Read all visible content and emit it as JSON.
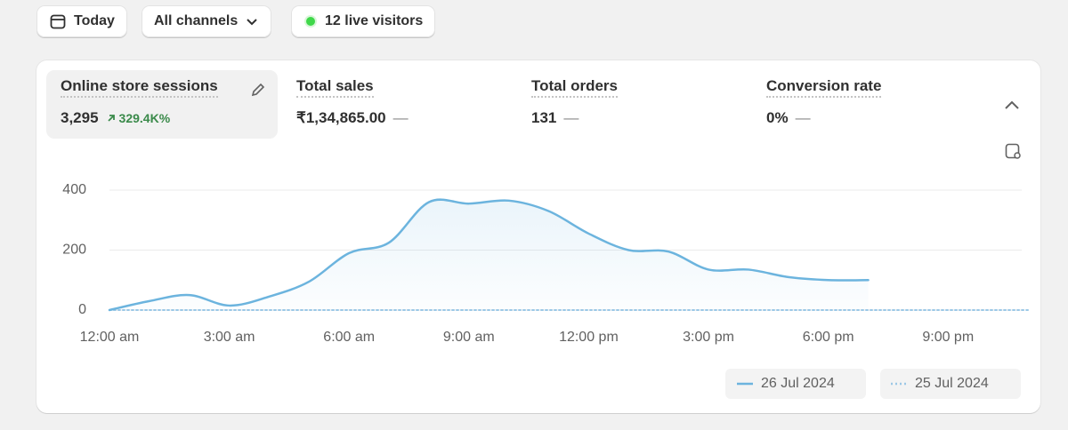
{
  "toolbar": {
    "date": "Today",
    "channel": "All channels",
    "live": "12 live visitors"
  },
  "metrics": [
    {
      "label": "Online store sessions",
      "value": "3,295",
      "change": "329.4K%"
    },
    {
      "label": "Total sales",
      "value": "₹1,34,865.00",
      "change": "—"
    },
    {
      "label": "Total orders",
      "value": "131",
      "change": "—"
    },
    {
      "label": "Conversion rate",
      "value": "0%",
      "change": "—"
    }
  ],
  "chart_data": {
    "type": "line",
    "x": [
      0,
      1,
      2,
      3,
      4,
      5,
      6,
      7,
      8,
      9,
      10,
      11,
      12,
      13,
      14,
      15,
      16,
      17,
      18,
      19,
      20,
      21,
      22,
      23
    ],
    "xlim": [
      0,
      23
    ],
    "xticks": [
      {
        "value": 0,
        "label": "12:00 am"
      },
      {
        "value": 3,
        "label": "3:00 am"
      },
      {
        "value": 6,
        "label": "6:00 am"
      },
      {
        "value": 9,
        "label": "9:00 am"
      },
      {
        "value": 12,
        "label": "12:00 pm"
      },
      {
        "value": 15,
        "label": "3:00 pm"
      },
      {
        "value": 18,
        "label": "6:00 pm"
      },
      {
        "value": 21,
        "label": "9:00 pm"
      }
    ],
    "ylim": [
      0,
      400
    ],
    "yticks": [
      0,
      200,
      400
    ],
    "grid": true,
    "series": [
      {
        "name": "26 Jul 2024",
        "color": "#6cb4de",
        "line_style": "solid",
        "area": true,
        "values": [
          0,
          30,
          50,
          15,
          45,
          95,
          190,
          225,
          360,
          355,
          365,
          330,
          255,
          200,
          195,
          135,
          135,
          110,
          100,
          100,
          null,
          null,
          null,
          null
        ]
      },
      {
        "name": "25 Jul 2024",
        "color": "#9cc8e6",
        "line_style": "dotted",
        "area": false,
        "values": [
          0,
          0,
          0,
          0,
          0,
          0,
          0,
          0,
          0,
          0,
          0,
          0,
          0,
          0,
          0,
          0,
          0,
          0,
          0,
          0,
          0,
          0,
          0,
          0
        ]
      }
    ]
  }
}
